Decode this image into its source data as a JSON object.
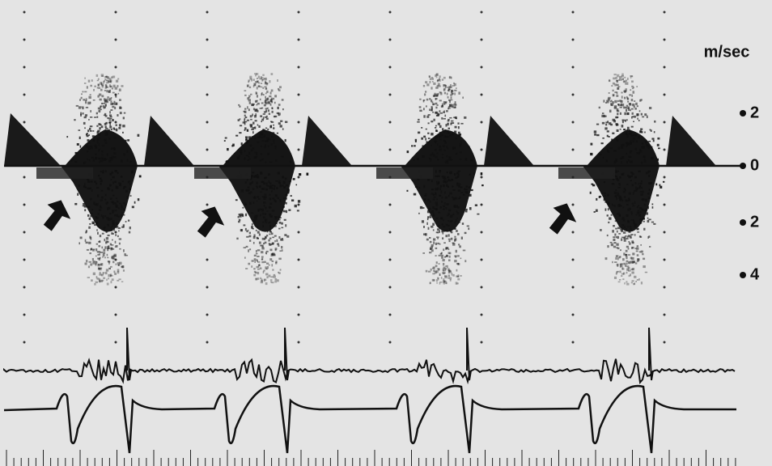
{
  "scale": {
    "unit": "m/sec",
    "labels": [
      2,
      0,
      2,
      4
    ]
  }
}
